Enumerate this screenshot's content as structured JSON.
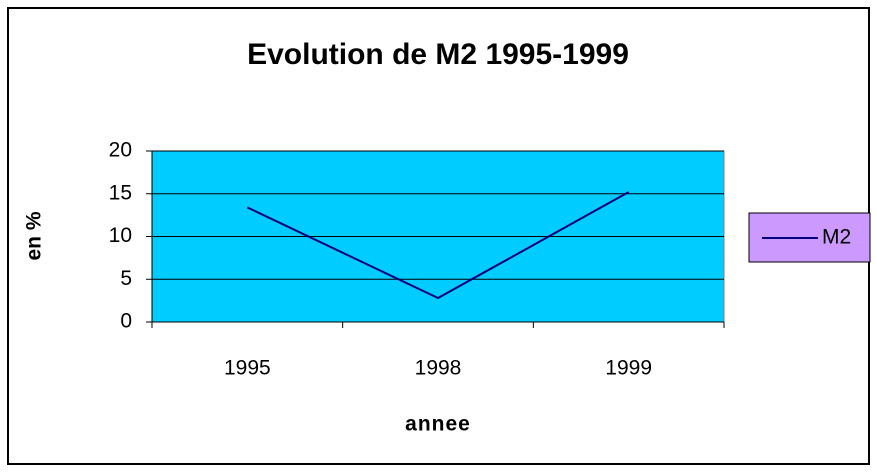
{
  "chart_data": {
    "type": "line",
    "title": "Evolution de M2 1995-1999",
    "x_label": "annee",
    "y_label": "en %",
    "categories": [
      "1995",
      "1998",
      "1999"
    ],
    "series": [
      {
        "name": "M2",
        "color": "#000080",
        "values": [
          13.4,
          2.8,
          15.2
        ]
      }
    ],
    "ylim": [
      0,
      20
    ],
    "yticks": [
      0,
      5,
      10,
      15,
      20
    ],
    "grid": true,
    "plot_background": "#00ccff",
    "legend_position": "right",
    "legend_background": "#cc99ff"
  }
}
